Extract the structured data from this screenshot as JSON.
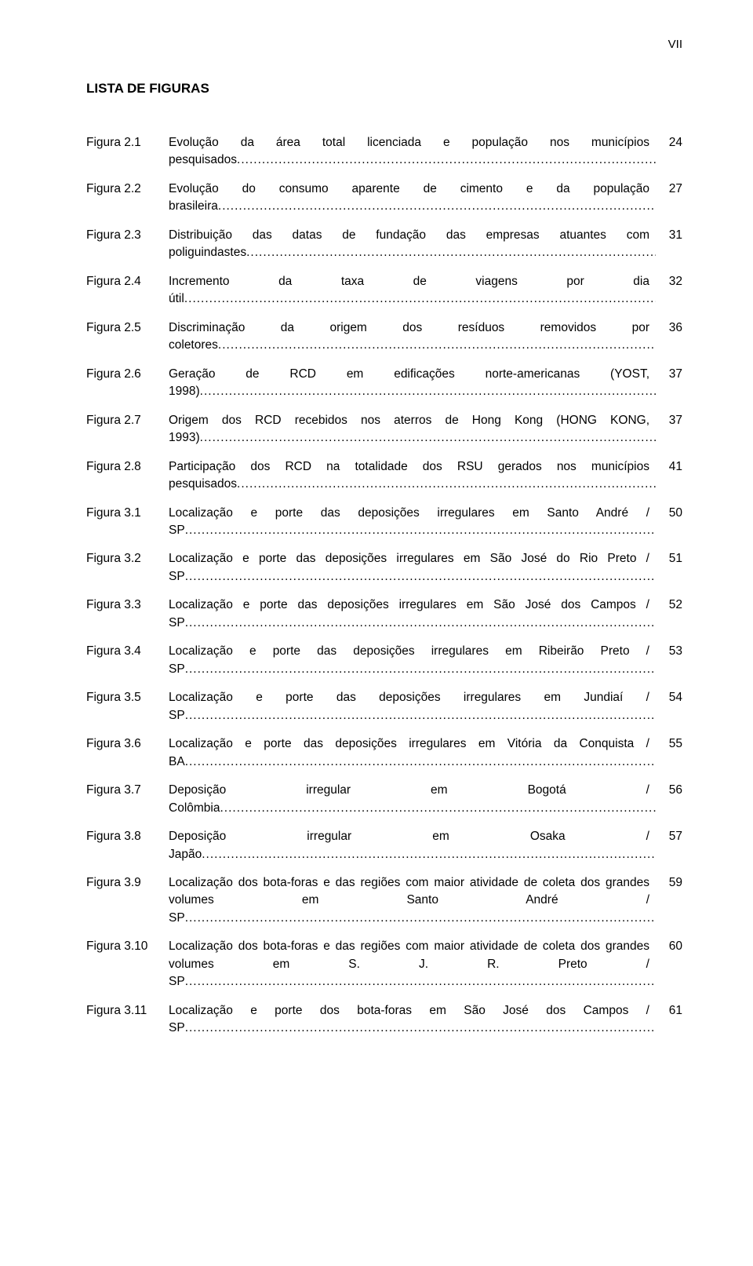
{
  "page_number": "VII",
  "heading": "LISTA DE FIGURAS",
  "entries": [
    {
      "label": "Figura 2.1",
      "text": "Evolução da área total licenciada e população nos municípios pesquisados",
      "page": "24"
    },
    {
      "label": "Figura 2.2",
      "text": "Evolução do consumo aparente de cimento e da população brasileira",
      "page": "27"
    },
    {
      "label": "Figura 2.3",
      "text": "Distribuição das datas de fundação das empresas atuantes com poliguindastes",
      "page": "31"
    },
    {
      "label": "Figura 2.4",
      "text": "Incremento da taxa de viagens por dia útil",
      "page": "32"
    },
    {
      "label": "Figura 2.5",
      "text": "Discriminação da origem dos resíduos removidos por coletores",
      "page": "36"
    },
    {
      "label": "Figura 2.6",
      "text": "Geração de RCD em edificações norte-americanas (YOST, 1998)",
      "page": "37"
    },
    {
      "label": "Figura 2.7",
      "text": "Origem dos RCD recebidos nos aterros de Hong Kong (HONG KONG, 1993)",
      "page": "37"
    },
    {
      "label": "Figura 2.8",
      "text": "Participação dos RCD na totalidade dos RSU gerados nos municípios pesquisados",
      "page": "41"
    },
    {
      "label": "Figura 3.1",
      "text": "Localização e porte das deposições irregulares em Santo André / SP",
      "page": "50"
    },
    {
      "label": "Figura 3.2",
      "text": "Localização e porte das deposições irregulares em São José do Rio Preto / SP",
      "page": "51"
    },
    {
      "label": "Figura 3.3",
      "text": "Localização e porte das deposições irregulares em São José dos Campos / SP",
      "page": "52"
    },
    {
      "label": "Figura 3.4",
      "text": "Localização e porte das deposições irregulares em Ribeirão Preto / SP",
      "page": "53"
    },
    {
      "label": "Figura 3.5",
      "text": "Localização e porte das deposições irregulares em Jundiaí / SP",
      "page": "54"
    },
    {
      "label": "Figura 3.6",
      "text": "Localização e porte das deposições irregulares em Vitória da Conquista / BA",
      "page": "55"
    },
    {
      "label": "Figura 3.7",
      "text": "Deposição irregular em Bogotá / Colômbia",
      "page": "56"
    },
    {
      "label": "Figura 3.8",
      "text": "Deposição irregular em Osaka / Japão",
      "page": "57"
    },
    {
      "label": "Figura 3.9",
      "text": "Localização dos bota-foras e das regiões com maior atividade de coleta dos grandes volumes em Santo André / SP",
      "page": "59"
    },
    {
      "label": "Figura 3.10",
      "text": "Localização dos bota-foras e das regiões com maior atividade de coleta dos grandes volumes em S. J. R. Preto / SP",
      "page": "60"
    },
    {
      "label": "Figura 3.11",
      "text": "Localização e porte dos bota-foras em São José dos Campos / SP",
      "page": "61"
    }
  ]
}
